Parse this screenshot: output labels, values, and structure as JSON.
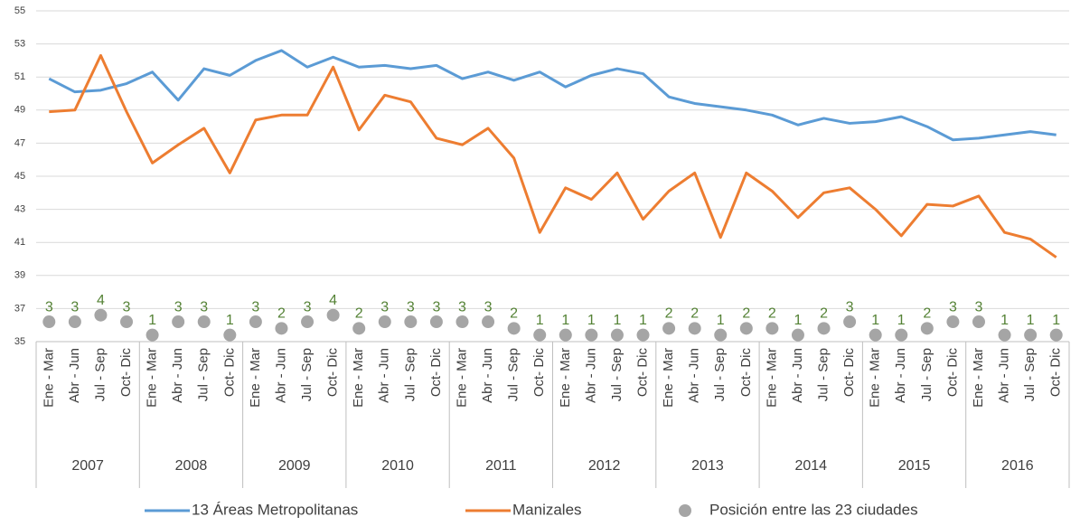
{
  "chart_data": {
    "type": "line",
    "categories": [
      "Ene - Mar",
      "Abr - Jun",
      "Jul - Sep",
      "Oct- Dic",
      "Ene - Mar",
      "Abr - Jun",
      "Jul - Sep",
      "Oct- Dic",
      "Ene - Mar",
      "Abr - Jun",
      "Jul - Sep",
      "Oct- Dic",
      "Ene - Mar",
      "Abr - Jun",
      "Jul - Sep",
      "Oct- Dic",
      "Ene - Mar",
      "Abr - Jun",
      "Jul - Sep",
      "Oct- Dic",
      "Ene - Mar",
      "Abr - Jun",
      "Jul - Sep",
      "Oct- Dic",
      "Ene - Mar",
      "Abr - Jun",
      "Jul - Sep",
      "Oct- Dic",
      "Ene - Mar",
      "Abr - Jun",
      "Jul - Sep",
      "Oct- Dic",
      "Ene - Mar",
      "Abr - Jun",
      "Jul - Sep",
      "Oct- Dic",
      "Ene - Mar",
      "Abr - Jun",
      "Jul - Sep",
      "Oct- Dic"
    ],
    "groups": [
      "2007",
      "2008",
      "2009",
      "2010",
      "2011",
      "2012",
      "2013",
      "2014",
      "2015",
      "2016"
    ],
    "ylim": [
      35,
      55
    ],
    "yticks": [
      35,
      37,
      39,
      41,
      43,
      45,
      47,
      49,
      51,
      53,
      55
    ],
    "y2lim": [
      0,
      50
    ],
    "grid": true,
    "series": [
      {
        "name": "13 Áreas Metropolitanas",
        "color": "#5b9bd5",
        "type": "line",
        "values": [
          50.9,
          50.1,
          50.2,
          50.6,
          51.3,
          49.6,
          51.5,
          51.1,
          52.0,
          52.6,
          51.6,
          52.2,
          51.6,
          51.7,
          51.5,
          51.7,
          50.9,
          51.3,
          50.8,
          51.3,
          50.4,
          51.1,
          51.5,
          51.2,
          49.8,
          49.4,
          49.2,
          49.0,
          48.7,
          48.1,
          48.5,
          48.2,
          48.3,
          48.6,
          48.0,
          47.2,
          47.3,
          47.5,
          47.7,
          47.5
        ]
      },
      {
        "name": "Manizales",
        "color": "#ed7d31",
        "type": "line",
        "values": [
          48.9,
          49.0,
          52.3,
          48.9,
          45.8,
          46.9,
          47.9,
          45.2,
          48.4,
          48.7,
          48.7,
          51.6,
          47.8,
          49.9,
          49.5,
          47.3,
          46.9,
          47.9,
          46.1,
          41.6,
          44.3,
          43.6,
          45.2,
          42.4,
          44.1,
          45.2,
          41.3,
          45.2,
          44.1,
          42.5,
          44.0,
          44.3,
          43.0,
          41.4,
          43.3,
          43.2,
          43.8,
          41.6,
          41.2,
          40.1
        ]
      },
      {
        "name": "Posición entre las 23 ciudades",
        "color": "#a5a5a5",
        "type": "scatter",
        "axis": "y2",
        "label_color": "#548235",
        "values": [
          3,
          3,
          4,
          3,
          1,
          3,
          3,
          1,
          3,
          2,
          3,
          4,
          2,
          3,
          3,
          3,
          3,
          3,
          2,
          1,
          1,
          1,
          1,
          1,
          2,
          2,
          1,
          2,
          2,
          1,
          2,
          3,
          1,
          1,
          2,
          3,
          3,
          1,
          1,
          1
        ]
      }
    ]
  }
}
